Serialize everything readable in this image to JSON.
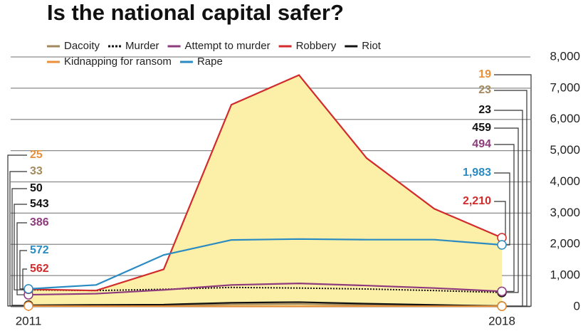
{
  "chart_data": {
    "type": "line",
    "title": "Is the national capital safer?",
    "x": [
      2011,
      2012,
      2013,
      2014,
      2015,
      2016,
      2017,
      2018
    ],
    "xlim": [
      2011,
      2018
    ],
    "xticks": [
      2011,
      2018
    ],
    "ylim": [
      0,
      8000
    ],
    "yticks": [
      0,
      {
        "value": 1000,
        "label": "1,000"
      },
      {
        "value": 2000,
        "label": "2,000"
      },
      {
        "value": 3000,
        "label": "3,000"
      },
      {
        "value": 4000,
        "label": "4,000"
      },
      {
        "value": 5000,
        "label": "5,000"
      },
      {
        "value": 6000,
        "label": "6,000"
      },
      {
        "value": 7000,
        "label": "7,000"
      },
      {
        "value": 8000,
        "label": "8,000"
      }
    ],
    "grid": true,
    "legend": "top-left",
    "series": [
      {
        "name": "Dacoity",
        "color": "#a38a5e",
        "values": [
          33,
          30,
          35,
          80,
          90,
          60,
          40,
          23
        ]
      },
      {
        "name": "Murder",
        "color": "#111111",
        "dash": "dotted",
        "values": [
          543,
          520,
          560,
          620,
          600,
          570,
          520,
          459
        ]
      },
      {
        "name": "Attempt to murder",
        "color": "#8e3b7d",
        "values": [
          386,
          420,
          540,
          700,
          750,
          680,
          600,
          494
        ]
      },
      {
        "name": "Robbery",
        "color": "#d22b2b",
        "fill": "#fcefa8",
        "values": [
          562,
          520,
          1200,
          6470,
          7420,
          4760,
          3140,
          2210
        ],
        "value_labels": [
          "562",
          null,
          null,
          null,
          null,
          null,
          null,
          "2,210"
        ]
      },
      {
        "name": "Riot",
        "color": "#111111",
        "values": [
          50,
          60,
          70,
          130,
          150,
          100,
          60,
          23
        ]
      },
      {
        "name": "Kidnapping for ransom",
        "color": "#e8913a",
        "values": [
          25,
          20,
          20,
          15,
          15,
          20,
          18,
          19
        ]
      },
      {
        "name": "Rape",
        "color": "#2a8bc2",
        "values": [
          572,
          700,
          1660,
          2140,
          2170,
          2150,
          2150,
          1983
        ],
        "value_labels": [
          "572",
          null,
          null,
          null,
          null,
          null,
          null,
          "1,983"
        ]
      }
    ]
  }
}
